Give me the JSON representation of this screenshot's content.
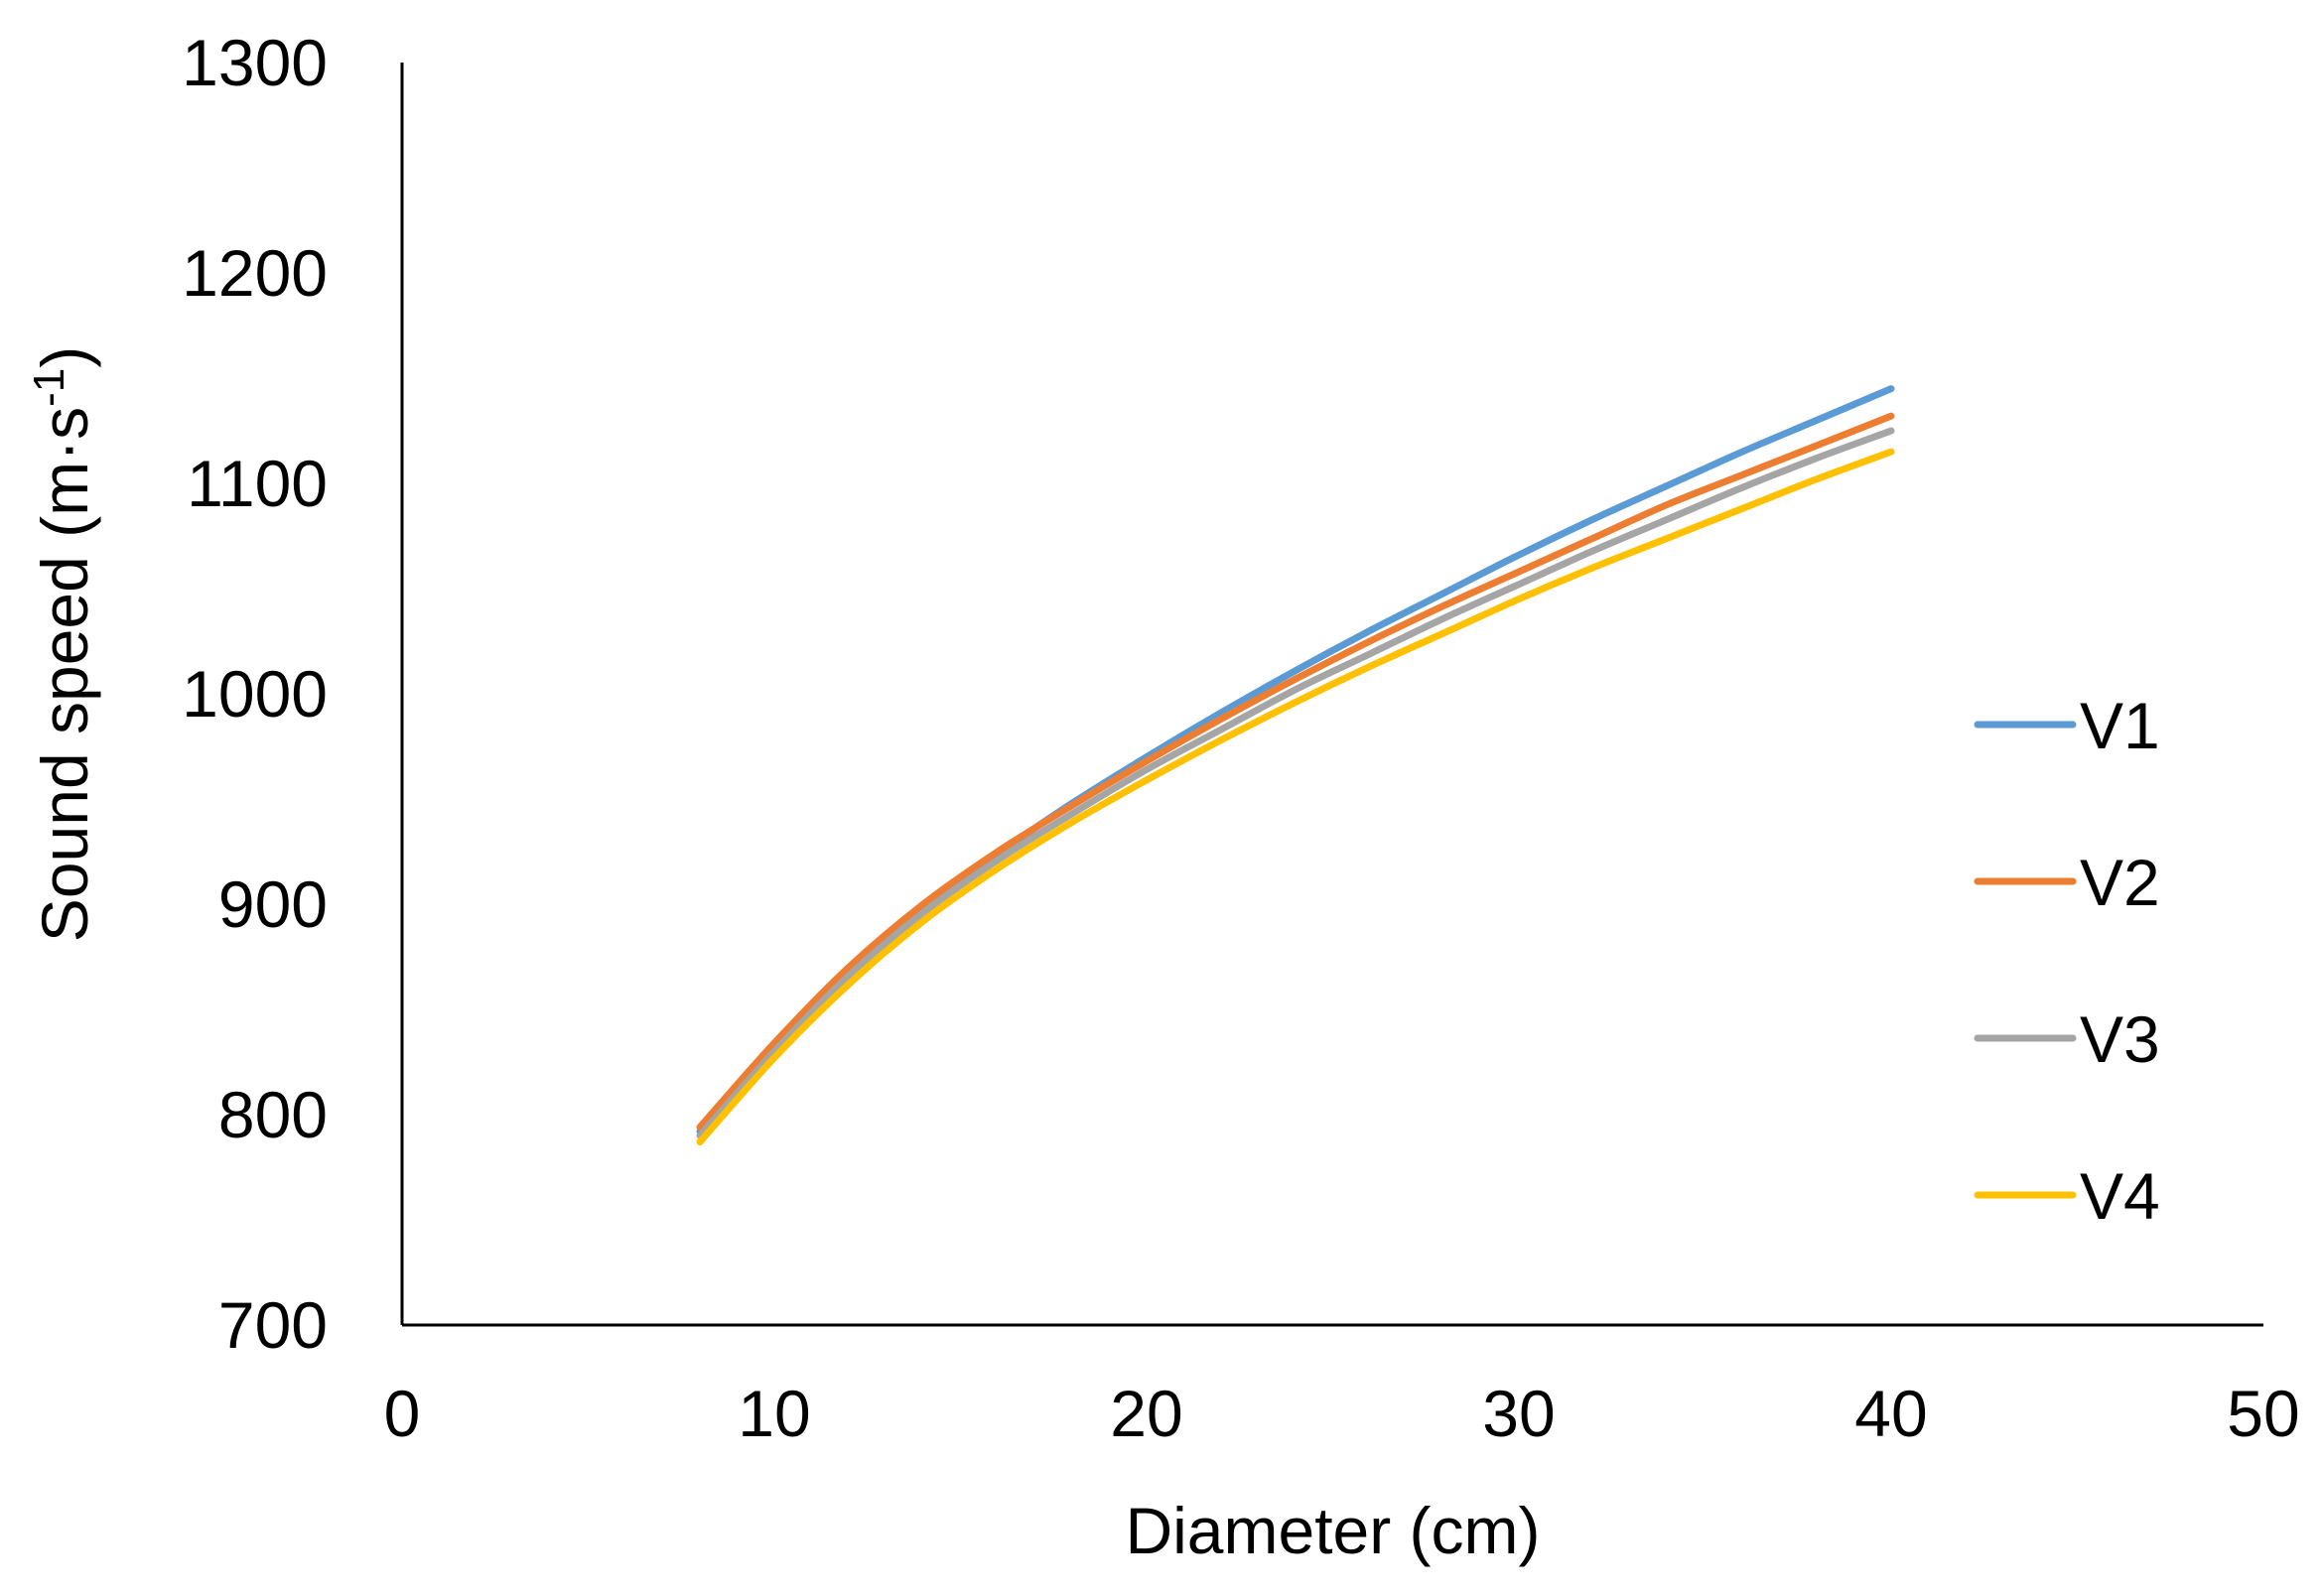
{
  "chart_data": {
    "type": "line",
    "title": "",
    "xlabel": "Diameter (cm)",
    "ylabel_main": "Sound speed (m·s",
    "ylabel_sup": "-1",
    "ylabel_close": ")",
    "xlim": [
      0,
      50
    ],
    "ylim": [
      700,
      1300
    ],
    "xticks": [
      "0",
      "10",
      "20",
      "30",
      "40",
      "50"
    ],
    "yticks": [
      "700",
      "800",
      "900",
      "1000",
      "1100",
      "1200",
      "1300"
    ],
    "grid": false,
    "legend_position": "right",
    "x": [
      8,
      10,
      12,
      14,
      16,
      18,
      20,
      22,
      24,
      26,
      28,
      30,
      32,
      34,
      36,
      38,
      40
    ],
    "series": [
      {
        "name": "V1",
        "color": "#5B9BD5",
        "values": [
          792,
          833,
          869,
          899,
          924,
          948,
          970,
          991,
          1011,
          1030,
          1048,
          1066,
          1083,
          1099,
          1115,
          1130,
          1145
        ]
      },
      {
        "name": "V2",
        "color": "#ED7D31",
        "values": [
          794,
          834,
          870,
          900,
          925,
          947,
          968,
          988,
          1007,
          1025,
          1042,
          1058,
          1074,
          1090,
          1104,
          1118,
          1132
        ]
      },
      {
        "name": "V3",
        "color": "#A5A5A5",
        "values": [
          790,
          830,
          866,
          896,
          921,
          943,
          964,
          983,
          1002,
          1019,
          1036,
          1052,
          1068,
          1083,
          1098,
          1112,
          1125
        ]
      },
      {
        "name": "V4",
        "color": "#FFC000",
        "values": [
          787,
          827,
          862,
          892,
          917,
          939,
          959,
          978,
          996,
          1013,
          1029,
          1045,
          1060,
          1074,
          1088,
          1102,
          1115
        ]
      }
    ]
  }
}
